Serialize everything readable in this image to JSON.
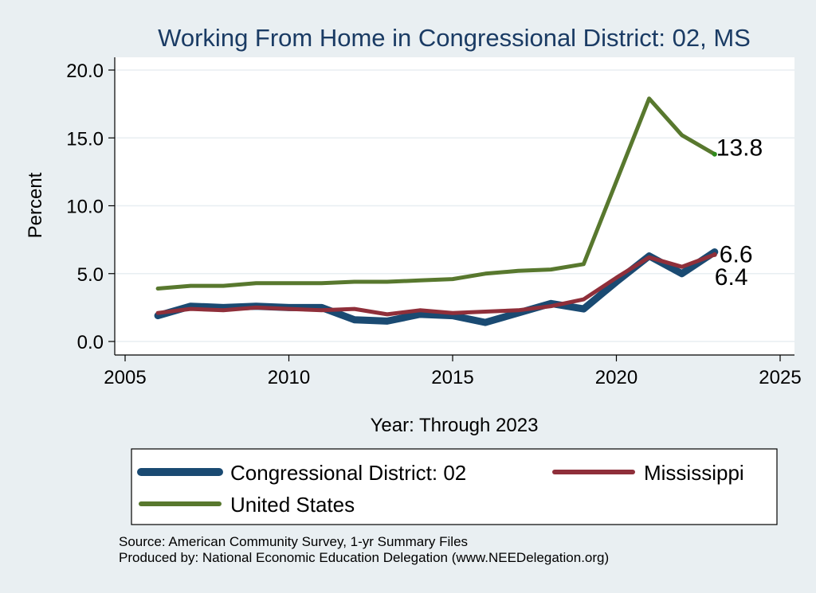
{
  "chart_data": {
    "type": "line",
    "title": "Working From Home in Congressional District: 02, MS",
    "xlabel": "Year: Through 2023",
    "ylabel": "Percent",
    "xlim": [
      2005,
      2025
    ],
    "ylim": [
      0,
      20
    ],
    "x_ticks": [
      2005,
      2010,
      2015,
      2020,
      2025
    ],
    "y_ticks": [
      "0.0",
      "5.0",
      "10.0",
      "15.0",
      "20.0"
    ],
    "grid": true,
    "legend_position": "bottom",
    "x": [
      2006,
      2007,
      2008,
      2009,
      2010,
      2011,
      2012,
      2013,
      2014,
      2015,
      2016,
      2017,
      2018,
      2019,
      2020,
      2021,
      2022,
      2023
    ],
    "series": [
      {
        "name": "Congressional District: 02",
        "color": "#1a4a72",
        "values": [
          1.9,
          2.6,
          2.5,
          2.6,
          2.5,
          2.5,
          1.6,
          1.5,
          2.0,
          1.9,
          1.4,
          2.1,
          2.8,
          2.4,
          4.4,
          6.3,
          5.0,
          6.6
        ],
        "end_label": "6.6"
      },
      {
        "name": "Mississippi",
        "color": "#8f2f3a",
        "values": [
          2.1,
          2.4,
          2.3,
          2.5,
          2.4,
          2.3,
          2.4,
          2.0,
          2.3,
          2.1,
          2.2,
          2.3,
          2.6,
          3.1,
          4.7,
          6.2,
          5.5,
          6.4
        ],
        "end_label": "6.4"
      },
      {
        "name": "United States",
        "color": "#58782e",
        "values": [
          3.9,
          4.1,
          4.1,
          4.3,
          4.3,
          4.3,
          4.4,
          4.4,
          4.5,
          4.6,
          5.0,
          5.2,
          5.3,
          5.7,
          11.8,
          17.9,
          15.2,
          13.8
        ],
        "end_label": "13.8"
      }
    ]
  },
  "source_lines": [
    "Source: American Community Survey, 1-yr Summary Files",
    "Produced by: National Economic Education Delegation (www.NEEDelegation.org)"
  ]
}
